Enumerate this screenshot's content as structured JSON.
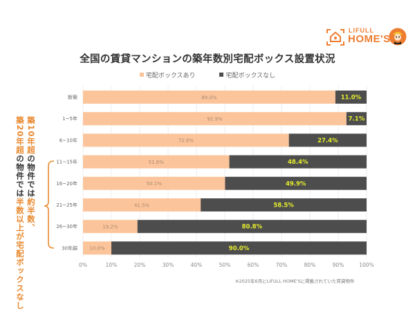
{
  "logo": {
    "brand_small": "LIFULL",
    "brand_big": "HOME'S"
  },
  "colors": {
    "with_box": "#fcc49a",
    "without_box": "#4d4d4d",
    "highlight_label": "#e6ee2c",
    "accent": "#e8892f",
    "grid": "#e8e8e8"
  },
  "annotation": {
    "col1": [
      {
        "text": "築10年超",
        "style": "o"
      },
      {
        "text": "の物件では",
        "style": "d"
      },
      {
        "text": "約半数、",
        "style": "o"
      }
    ],
    "col2": [
      {
        "text": "築20年超",
        "style": "o"
      },
      {
        "text": "の物件では",
        "style": "d"
      },
      {
        "text": "半数以上が宅配ボックスなし",
        "style": "o"
      }
    ]
  },
  "footnote": "※2025年6月にLIFULL HOME'Sに掲載されていた賃貸物件",
  "chart_data": {
    "type": "bar",
    "orientation": "horizontal",
    "stacked": true,
    "title": "全国の賃貸マンションの築年数別宅配ボックス設置状況",
    "xlabel": "",
    "ylabel": "",
    "xlim": [
      0,
      100
    ],
    "x_ticks": [
      "0%",
      "10%",
      "20%",
      "30%",
      "40%",
      "50%",
      "60%",
      "70%",
      "80%",
      "90%",
      "100%"
    ],
    "grid": true,
    "legend_position": "top-center",
    "categories": [
      "新築",
      "1~5年",
      "6~10年",
      "11~15年",
      "16~20年",
      "21~25年",
      "26~30年",
      "30年超"
    ],
    "series": [
      {
        "name": "宅配ボックスあり",
        "values": [
          89.0,
          92.9,
          72.6,
          51.6,
          50.1,
          41.5,
          19.2,
          10.0
        ],
        "labels": [
          "89.0%",
          "92.9%",
          "72.6%",
          "51.6%",
          "50.1%",
          "41.5%",
          "19.2%",
          "10.0%"
        ]
      },
      {
        "name": "宅配ボックスなし",
        "values": [
          11.0,
          7.1,
          27.4,
          48.4,
          49.9,
          58.5,
          80.8,
          90.0
        ],
        "labels": [
          "11.0%",
          "7.1%",
          "27.4%",
          "48.4%",
          "49.9%",
          "58.5%",
          "80.8%",
          "90.0%"
        ]
      }
    ]
  }
}
